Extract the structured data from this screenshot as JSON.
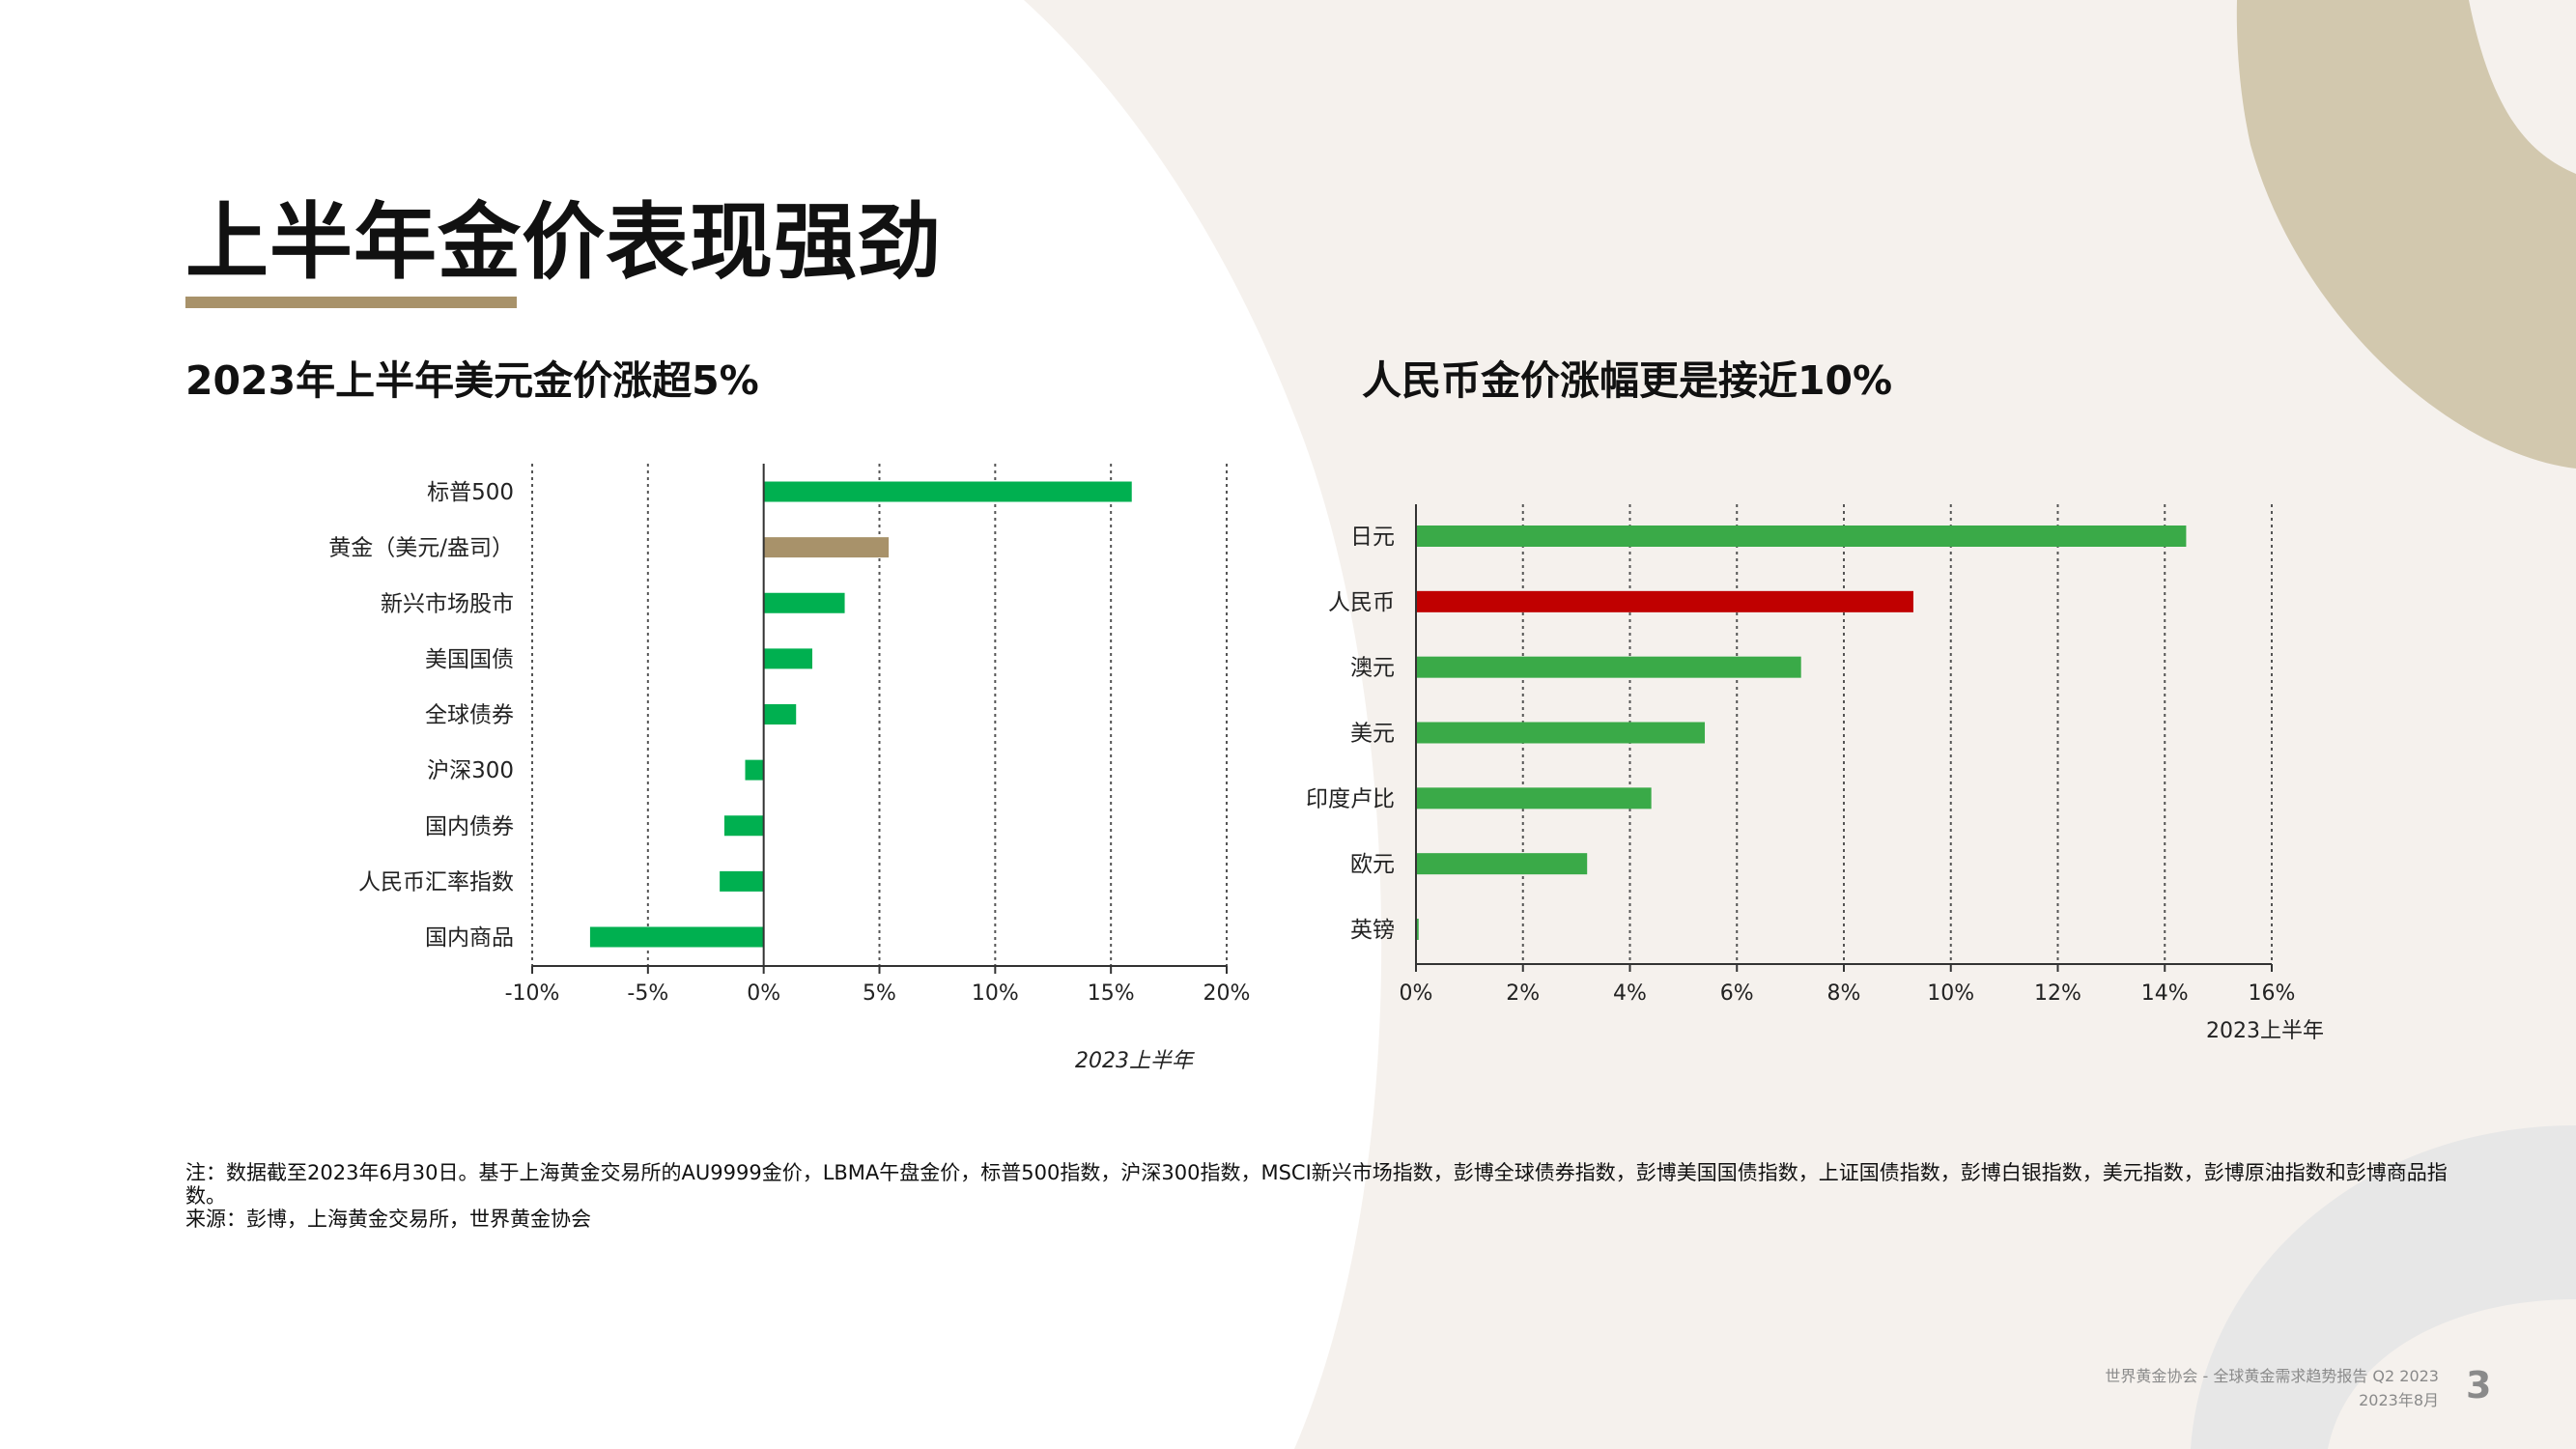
{
  "slide": {
    "title": "上半年金价表现强劲",
    "page_number": "3",
    "footer_line1": "世界黄金协会 - 全球黄金需求趋势报告 Q2 2023",
    "footer_line2": "2023年8月",
    "note": "注：数据截至2023年6月30日。基于上海黄金交易所的AU9999金价，LBMA午盘金价，标普500指数，沪深300指数，MSCI新兴市场指数，彭博全球债券指数，彭博美国国债指数，上证国债指数，彭博白银指数，美元指数，彭博原油指数和彭博商品指数。",
    "source": "来源：彭博，上海黄金交易所，世界黄金协会"
  },
  "colors": {
    "accent": "#a8926a",
    "green_left": "#00b050",
    "gold_bar": "#a8926a",
    "green_right": "#3aaa48",
    "red_bar": "#c00000",
    "bg_beige": "#f5f1ed",
    "bg_tan": "#d2c8ae",
    "bg_gray": "#e7e7e7"
  },
  "chart_data": [
    {
      "type": "bar",
      "orientation": "horizontal",
      "title": "2023年上半年美元金价涨超5%",
      "categories": [
        "标普500",
        "黄金（美元/盎司）",
        "新兴市场股市",
        "美国国债",
        "全球债券",
        "沪深300",
        "国内债券",
        "人民币汇率指数",
        "国内商品"
      ],
      "values": [
        15.9,
        5.4,
        3.5,
        2.1,
        1.4,
        -0.8,
        -1.7,
        -1.9,
        -7.5
      ],
      "highlight": "黄金（美元/盎司）",
      "xlim": [
        -10,
        20
      ],
      "xticks": [
        -10,
        -5,
        0,
        5,
        10,
        15,
        20
      ],
      "xtick_labels": [
        "-10%",
        "-5%",
        "0%",
        "5%",
        "10%",
        "15%",
        "20%"
      ],
      "xlabel": "2023上半年",
      "grid": "vertical-dotted"
    },
    {
      "type": "bar",
      "orientation": "horizontal",
      "title": "人民币金价涨幅更是接近10%",
      "categories": [
        "日元",
        "人民币",
        "澳元",
        "美元",
        "印度卢比",
        "欧元",
        "英镑"
      ],
      "values": [
        14.4,
        9.3,
        7.2,
        5.4,
        4.4,
        3.2,
        0.05
      ],
      "highlight": "人民币",
      "xlim": [
        0,
        16
      ],
      "xticks": [
        0,
        2,
        4,
        6,
        8,
        10,
        12,
        14,
        16
      ],
      "xtick_labels": [
        "0%",
        "2%",
        "4%",
        "6%",
        "8%",
        "10%",
        "12%",
        "14%",
        "16%"
      ],
      "xlabel": "2023上半年",
      "grid": "vertical-dotted"
    }
  ]
}
